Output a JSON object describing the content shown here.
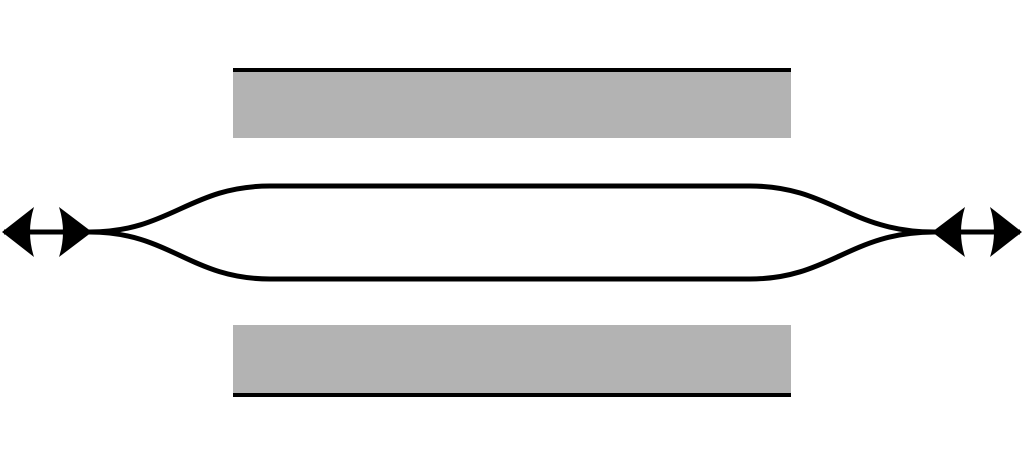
{
  "colors": {
    "stroke": "#000000",
    "plate_fill": "#b3b3b3",
    "background": "#ffffff"
  },
  "elements": {
    "top_plate": {
      "fill": "gray",
      "edge": "top"
    },
    "bottom_plate": {
      "fill": "gray",
      "edge": "bottom"
    },
    "left_port": {
      "icon": "double-headed-arrow"
    },
    "right_port": {
      "icon": "double-headed-arrow"
    }
  }
}
